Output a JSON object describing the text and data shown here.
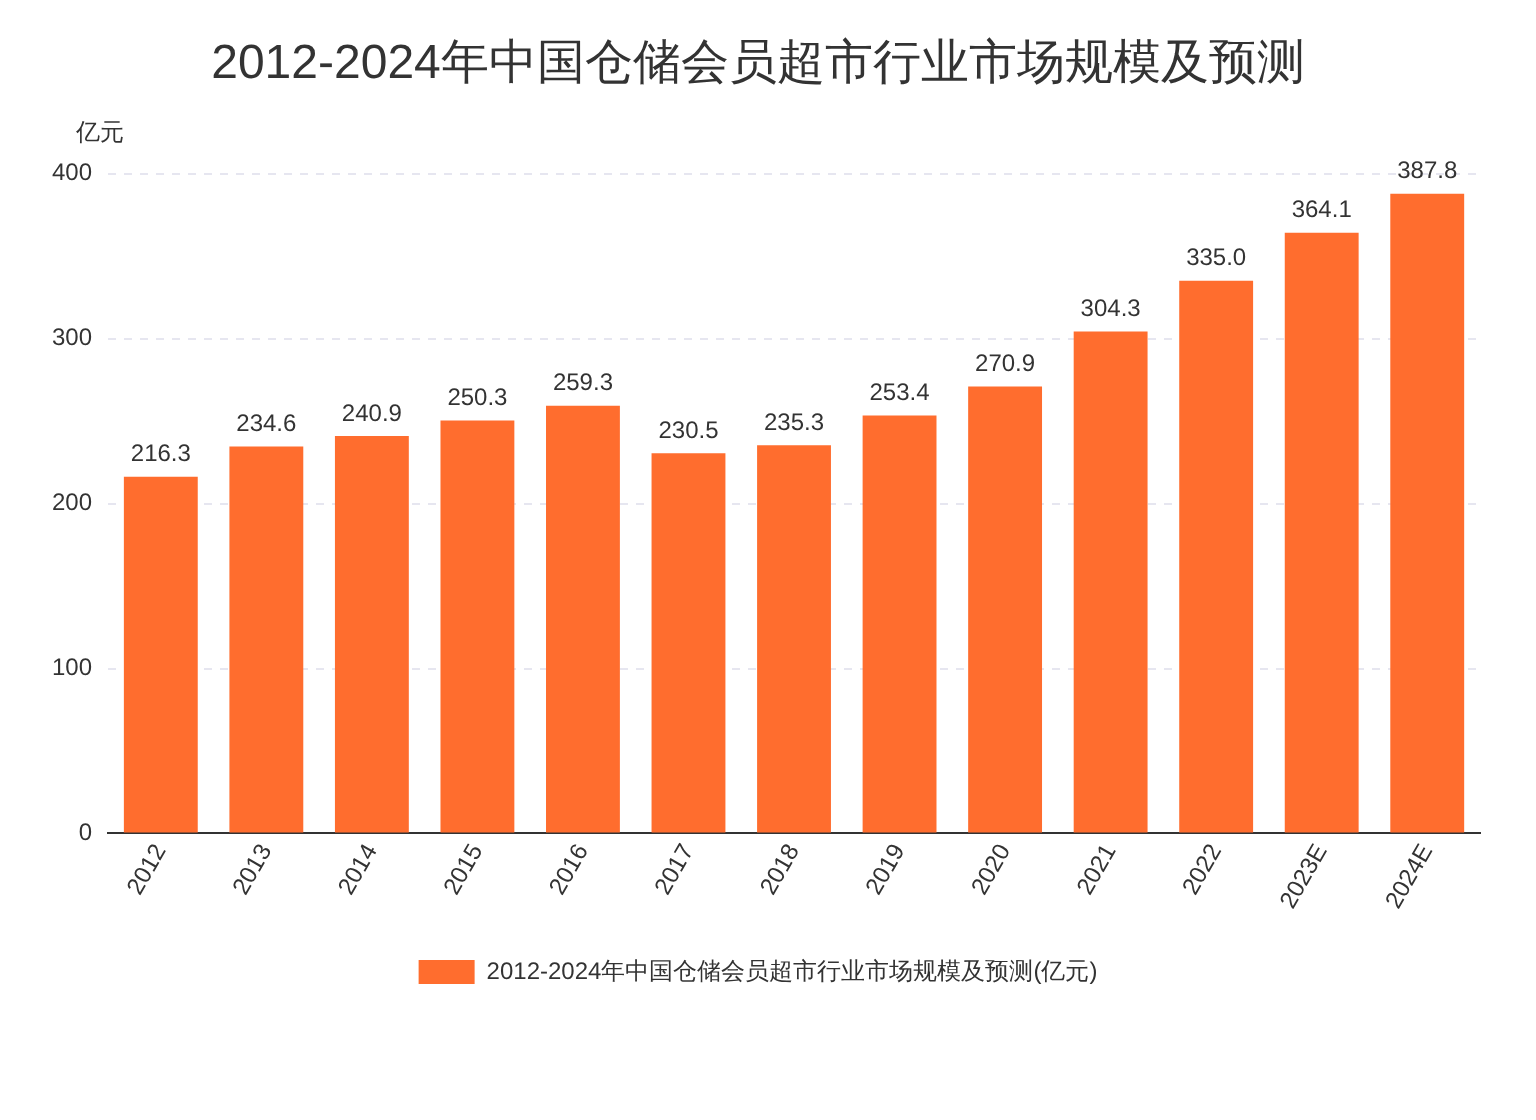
{
  "chart_data": {
    "type": "bar",
    "title": "2012-2024年中国仓储会员超市行业市场规模及预测",
    "ylabel": "亿元",
    "categories": [
      "2012",
      "2013",
      "2014",
      "2015",
      "2016",
      "2017",
      "2018",
      "2019",
      "2020",
      "2021",
      "2022",
      "2023E",
      "2024E"
    ],
    "series": [
      {
        "name": "2012-2024年中国仓储会员超市行业市场规模及预测(亿元)",
        "color": "#ff6d2e",
        "values": [
          216.3,
          234.6,
          240.9,
          250.3,
          259.3,
          230.5,
          235.3,
          253.4,
          270.9,
          304.3,
          335.0,
          364.1,
          387.8
        ],
        "value_labels": [
          "216.3",
          "234.6",
          "240.9",
          "250.3",
          "259.3",
          "230.5",
          "235.3",
          "253.4",
          "270.9",
          "304.3",
          "335.0",
          "364.1",
          "387.8"
        ]
      }
    ],
    "ylim": [
      0,
      400
    ],
    "yticks": [
      0,
      100,
      200,
      300,
      400
    ],
    "grid": "y",
    "legend": "bottom"
  }
}
